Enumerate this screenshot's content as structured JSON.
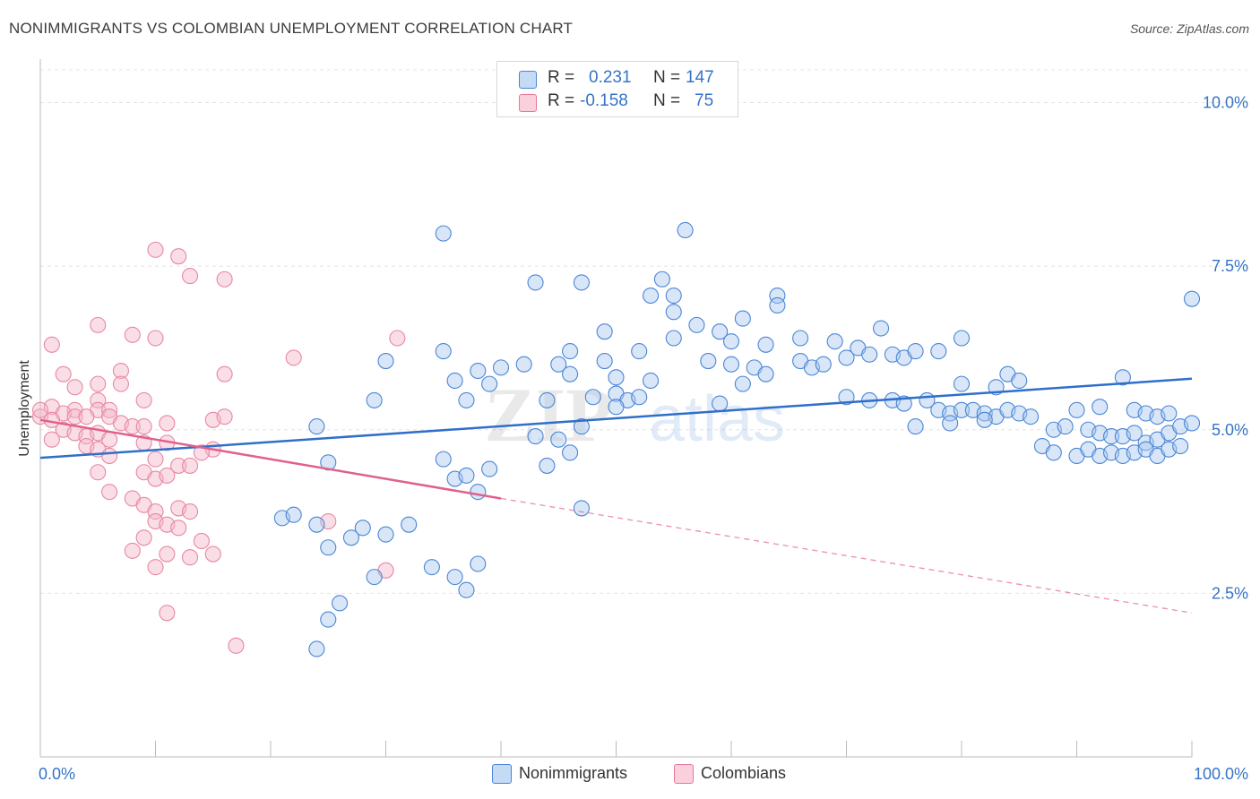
{
  "header": {
    "title": "NONIMMIGRANTS VS COLOMBIAN UNEMPLOYMENT CORRELATION CHART",
    "source": "Source: ZipAtlas.com"
  },
  "legend": {
    "rows": [
      {
        "r_label": "R =",
        "r_value": "0.231",
        "n_label": "N =",
        "n_value": "147",
        "color": "#a9c8f0"
      },
      {
        "r_label": "R =",
        "r_value": "-0.158",
        "n_label": "N =",
        "n_value": "75",
        "color": "#f5b6c9"
      }
    ]
  },
  "bottom_legend": {
    "series1": "Nonimmigrants",
    "series2": "Colombians"
  },
  "watermark": {
    "zip": "ZIP",
    "atlas": "atlas"
  },
  "chart_data": {
    "type": "scatter",
    "title": "NONIMMIGRANTS VS COLOMBIAN UNEMPLOYMENT CORRELATION CHART",
    "ylabel": "Unemployment",
    "xlabel": "",
    "xlim": [
      0,
      100
    ],
    "ylim": [
      0,
      10.5
    ],
    "x_tick_labels": [
      "0.0%",
      "100.0%"
    ],
    "y_ticks": [
      2.5,
      5.0,
      7.5,
      10.0
    ],
    "y_tick_labels": [
      "2.5%",
      "5.0%",
      "7.5%",
      "10.0%"
    ],
    "grid": "horizontal dashed",
    "legend_position": "top-center and bottom",
    "colors": {
      "blue": "#4a86d6",
      "blue_fill": "#a9c8f0",
      "pink": "#e8769b",
      "pink_fill": "#f5b6c9",
      "blue_line": "#2f6fcb",
      "pink_line": "#e0608e"
    },
    "series": [
      {
        "name": "Nonimmigrants",
        "trend": {
          "x0": 0,
          "y0": 4.57,
          "x1": 100,
          "y1": 5.78
        },
        "points": [
          [
            35,
            8.0
          ],
          [
            56,
            8.05
          ],
          [
            43,
            7.25
          ],
          [
            47,
            7.25
          ],
          [
            54,
            7.3
          ],
          [
            53,
            7.05
          ],
          [
            55,
            7.05
          ],
          [
            64,
            7.05
          ],
          [
            64,
            6.9
          ],
          [
            100,
            7.0
          ],
          [
            55,
            6.8
          ],
          [
            61,
            6.7
          ],
          [
            49,
            6.5
          ],
          [
            57,
            6.6
          ],
          [
            59,
            6.5
          ],
          [
            73,
            6.55
          ],
          [
            55,
            6.4
          ],
          [
            66,
            6.4
          ],
          [
            69,
            6.35
          ],
          [
            60,
            6.35
          ],
          [
            63,
            6.3
          ],
          [
            80,
            6.4
          ],
          [
            71,
            6.25
          ],
          [
            72,
            6.15
          ],
          [
            70,
            6.1
          ],
          [
            74,
            6.15
          ],
          [
            75,
            6.1
          ],
          [
            76,
            6.2
          ],
          [
            78,
            6.2
          ],
          [
            46,
            6.2
          ],
          [
            35,
            6.2
          ],
          [
            45,
            6.0
          ],
          [
            52,
            6.2
          ],
          [
            30,
            6.05
          ],
          [
            49,
            6.05
          ],
          [
            42,
            6.0
          ],
          [
            58,
            6.05
          ],
          [
            60,
            6.0
          ],
          [
            62,
            5.95
          ],
          [
            66,
            6.05
          ],
          [
            67,
            5.95
          ],
          [
            68,
            6.0
          ],
          [
            84,
            5.85
          ],
          [
            80,
            5.7
          ],
          [
            83,
            5.65
          ],
          [
            85,
            5.75
          ],
          [
            38,
            5.9
          ],
          [
            40,
            5.95
          ],
          [
            46,
            5.85
          ],
          [
            50,
            5.8
          ],
          [
            53,
            5.75
          ],
          [
            39,
            5.7
          ],
          [
            36,
            5.75
          ],
          [
            61,
            5.7
          ],
          [
            63,
            5.85
          ],
          [
            94,
            5.8
          ],
          [
            29,
            5.45
          ],
          [
            37,
            5.45
          ],
          [
            50,
            5.55
          ],
          [
            51,
            5.45
          ],
          [
            52,
            5.5
          ],
          [
            50,
            5.35
          ],
          [
            48,
            5.5
          ],
          [
            44,
            5.45
          ],
          [
            59,
            5.4
          ],
          [
            70,
            5.5
          ],
          [
            72,
            5.45
          ],
          [
            74,
            5.45
          ],
          [
            75,
            5.4
          ],
          [
            77,
            5.45
          ],
          [
            78,
            5.3
          ],
          [
            79,
            5.25
          ],
          [
            80,
            5.3
          ],
          [
            81,
            5.3
          ],
          [
            82,
            5.25
          ],
          [
            83,
            5.2
          ],
          [
            84,
            5.3
          ],
          [
            85,
            5.25
          ],
          [
            86,
            5.2
          ],
          [
            90,
            5.3
          ],
          [
            92,
            5.35
          ],
          [
            95,
            5.3
          ],
          [
            96,
            5.25
          ],
          [
            97,
            5.2
          ],
          [
            98,
            5.25
          ],
          [
            24,
            5.05
          ],
          [
            47,
            5.05
          ],
          [
            76,
            5.05
          ],
          [
            79,
            5.1
          ],
          [
            82,
            5.15
          ],
          [
            88,
            5.0
          ],
          [
            89,
            5.05
          ],
          [
            91,
            5.0
          ],
          [
            92,
            4.95
          ],
          [
            93,
            4.9
          ],
          [
            94,
            4.9
          ],
          [
            95,
            4.95
          ],
          [
            96,
            4.8
          ],
          [
            97,
            4.85
          ],
          [
            98,
            4.95
          ],
          [
            99,
            5.05
          ],
          [
            100,
            5.1
          ],
          [
            87,
            4.75
          ],
          [
            88,
            4.65
          ],
          [
            90,
            4.6
          ],
          [
            91,
            4.7
          ],
          [
            92,
            4.6
          ],
          [
            93,
            4.65
          ],
          [
            94,
            4.6
          ],
          [
            95,
            4.65
          ],
          [
            96,
            4.7
          ],
          [
            97,
            4.6
          ],
          [
            98,
            4.7
          ],
          [
            99,
            4.75
          ],
          [
            43,
            4.9
          ],
          [
            45,
            4.85
          ],
          [
            46,
            4.65
          ],
          [
            44,
            4.45
          ],
          [
            35,
            4.55
          ],
          [
            25,
            4.5
          ],
          [
            36,
            4.25
          ],
          [
            37,
            4.3
          ],
          [
            39,
            4.4
          ],
          [
            38,
            4.05
          ],
          [
            47,
            3.8
          ],
          [
            21,
            3.65
          ],
          [
            22,
            3.7
          ],
          [
            24,
            3.55
          ],
          [
            28,
            3.5
          ],
          [
            30,
            3.4
          ],
          [
            32,
            3.55
          ],
          [
            25,
            3.2
          ],
          [
            27,
            3.35
          ],
          [
            34,
            2.9
          ],
          [
            38,
            2.95
          ],
          [
            29,
            2.75
          ],
          [
            36,
            2.75
          ],
          [
            37,
            2.55
          ],
          [
            26,
            2.35
          ],
          [
            25,
            2.1
          ],
          [
            24,
            1.65
          ]
        ]
      },
      {
        "name": "Colombians",
        "trend": {
          "x0": 0,
          "y0": 5.15,
          "x1": 40,
          "y1": 3.95,
          "dash_x1": 100,
          "dash_y1": 2.2
        },
        "points": [
          [
            10,
            7.75
          ],
          [
            12,
            7.65
          ],
          [
            13,
            7.35
          ],
          [
            16,
            7.3
          ],
          [
            5,
            6.6
          ],
          [
            8,
            6.45
          ],
          [
            10,
            6.4
          ],
          [
            31,
            6.4
          ],
          [
            1,
            6.3
          ],
          [
            22,
            6.1
          ],
          [
            7,
            5.9
          ],
          [
            16,
            5.85
          ],
          [
            2,
            5.85
          ],
          [
            7,
            5.7
          ],
          [
            3,
            5.65
          ],
          [
            5,
            5.7
          ],
          [
            5,
            5.45
          ],
          [
            9,
            5.45
          ],
          [
            1,
            5.35
          ],
          [
            3,
            5.3
          ],
          [
            5,
            5.3
          ],
          [
            6,
            5.3
          ],
          [
            2,
            5.25
          ],
          [
            3,
            5.2
          ],
          [
            0,
            5.2
          ],
          [
            1,
            5.15
          ],
          [
            4,
            5.2
          ],
          [
            6,
            5.2
          ],
          [
            7,
            5.1
          ],
          [
            8,
            5.05
          ],
          [
            9,
            5.05
          ],
          [
            11,
            5.1
          ],
          [
            15,
            5.15
          ],
          [
            16,
            5.2
          ],
          [
            2,
            5.0
          ],
          [
            3,
            4.95
          ],
          [
            4,
            4.9
          ],
          [
            5,
            4.95
          ],
          [
            6,
            4.85
          ],
          [
            1,
            4.85
          ],
          [
            4,
            4.75
          ],
          [
            5,
            4.7
          ],
          [
            9,
            4.8
          ],
          [
            11,
            4.8
          ],
          [
            15,
            4.7
          ],
          [
            14,
            4.65
          ],
          [
            6,
            4.6
          ],
          [
            10,
            4.55
          ],
          [
            12,
            4.45
          ],
          [
            13,
            4.45
          ],
          [
            5,
            4.35
          ],
          [
            9,
            4.35
          ],
          [
            10,
            4.25
          ],
          [
            11,
            4.3
          ],
          [
            6,
            4.05
          ],
          [
            8,
            3.95
          ],
          [
            9,
            3.85
          ],
          [
            10,
            3.75
          ],
          [
            12,
            3.8
          ],
          [
            13,
            3.75
          ],
          [
            10,
            3.6
          ],
          [
            11,
            3.55
          ],
          [
            12,
            3.5
          ],
          [
            25,
            3.6
          ],
          [
            9,
            3.35
          ],
          [
            14,
            3.3
          ],
          [
            8,
            3.15
          ],
          [
            11,
            3.1
          ],
          [
            13,
            3.05
          ],
          [
            15,
            3.1
          ],
          [
            10,
            2.9
          ],
          [
            30,
            2.85
          ],
          [
            11,
            2.2
          ],
          [
            17,
            1.7
          ],
          [
            0,
            5.3
          ]
        ]
      }
    ]
  }
}
